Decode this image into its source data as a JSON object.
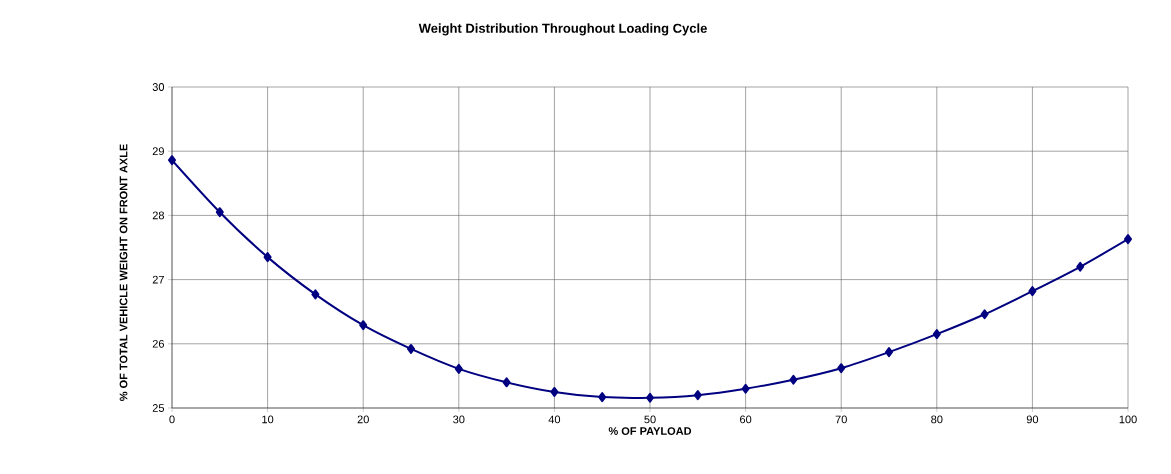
{
  "chart_data": {
    "type": "line",
    "title": "Weight Distribution Throughout Loading Cycle",
    "xlabel": "% OF PAYLOAD",
    "ylabel": "% OF TOTAL VEHICLE WEIGHT ON FRONT AXLE",
    "x": [
      0,
      5,
      10,
      15,
      20,
      25,
      30,
      35,
      40,
      45,
      50,
      55,
      60,
      65,
      70,
      75,
      80,
      85,
      90,
      95,
      100
    ],
    "series": [
      {
        "color": "#000080",
        "values": [
          28.86,
          28.05,
          27.35,
          26.77,
          26.29,
          25.92,
          25.61,
          25.4,
          25.25,
          25.17,
          25.16,
          25.2,
          25.3,
          25.44,
          25.62,
          25.87,
          26.15,
          26.46,
          26.82,
          27.2,
          27.63
        ]
      }
    ],
    "xlim": [
      0,
      100
    ],
    "xticks": [
      0,
      10,
      20,
      30,
      40,
      50,
      60,
      70,
      80,
      90,
      100
    ],
    "ylim": [
      25,
      30
    ],
    "yticks": [
      25,
      26,
      27,
      28,
      29,
      30
    ],
    "grid": true,
    "marker": "diamond",
    "line_style": "solid"
  }
}
